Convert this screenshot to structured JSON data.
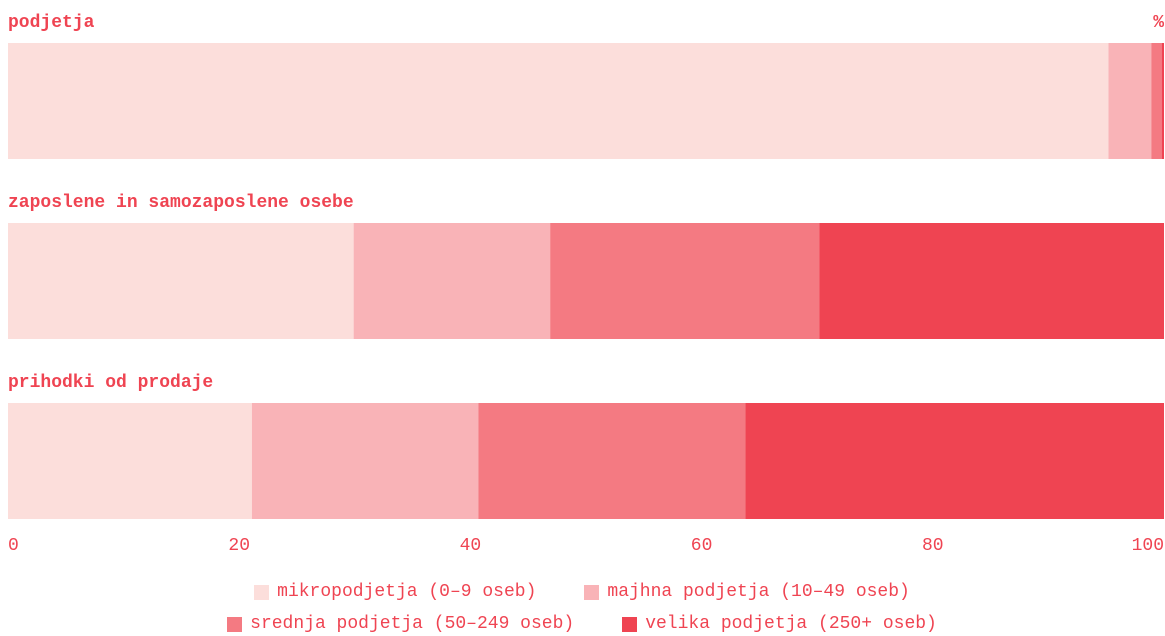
{
  "chart_data": {
    "type": "bar",
    "orientation": "horizontal",
    "stacked": true,
    "x_label": "%",
    "categories": [
      "podjetja",
      "zaposlene in samozaposlene osebe",
      "prihodki od prodaje"
    ],
    "series": [
      {
        "name": "mikropodjetja (0–9 oseb)",
        "color": "#fcdedb",
        "values": [
          95.2,
          29.9,
          21.1
        ]
      },
      {
        "name": "majhna podjetja (10–49 oseb)",
        "color": "#f9b3b7",
        "values": [
          3.7,
          17.0,
          19.6
        ]
      },
      {
        "name": "srednja podjetja (50–249 oseb)",
        "color": "#f47a82",
        "values": [
          0.9,
          23.3,
          23.1
        ]
      },
      {
        "name": "velika podjetja (250+ oseb)",
        "color": "#ef4452",
        "values": [
          0.2,
          29.8,
          36.2
        ]
      }
    ],
    "xlim": [
      0,
      100
    ],
    "xticks": [
      0,
      20,
      40,
      60,
      80,
      100
    ],
    "legend": "bottom"
  }
}
